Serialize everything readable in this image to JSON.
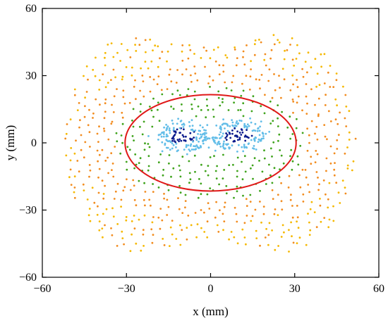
{
  "chart_data": {
    "type": "scatter",
    "xlabel": "x (mm)",
    "ylabel": "y (mm)",
    "xlim": [
      -60,
      60
    ],
    "ylim": [
      -60,
      60
    ],
    "grid": false,
    "x_ticks": [
      -60,
      -30,
      0,
      30,
      60
    ],
    "y_ticks": [
      -60,
      -30,
      0,
      30,
      60
    ],
    "x_tick_labels": [
      "−60",
      "−30",
      "0",
      "30",
      "60"
    ],
    "y_tick_labels": [
      "−60",
      "−30",
      "0",
      "30",
      "60"
    ],
    "point_groups": [
      {
        "color": "#f5b800",
        "region": "outer lobes",
        "approx_extent": {
          "x": [
            -52,
            52
          ],
          "y": [
            -50,
            50
          ]
        }
      },
      {
        "color": "#f28c1f",
        "region": "outer-middle band",
        "approx_extent": {
          "x": [
            -45,
            45
          ],
          "y": [
            -32,
            32
          ]
        }
      },
      {
        "color": "#3fa31c",
        "region": "middle band",
        "approx_extent": {
          "x": [
            -35,
            35
          ],
          "y": [
            -26,
            26
          ]
        }
      },
      {
        "color": "#62bde8",
        "region": "inner cores",
        "centers": [
          [
            -10,
            3
          ],
          [
            10,
            3
          ]
        ]
      },
      {
        "color": "#0a1a8c",
        "region": "core centers",
        "centers": [
          [
            -10,
            3
          ],
          [
            10,
            3
          ]
        ]
      }
    ],
    "ellipse": {
      "color": "#e01818",
      "center": [
        0,
        0
      ],
      "semi_axis_x": 30.5,
      "semi_axis_y": 21.5
    }
  }
}
